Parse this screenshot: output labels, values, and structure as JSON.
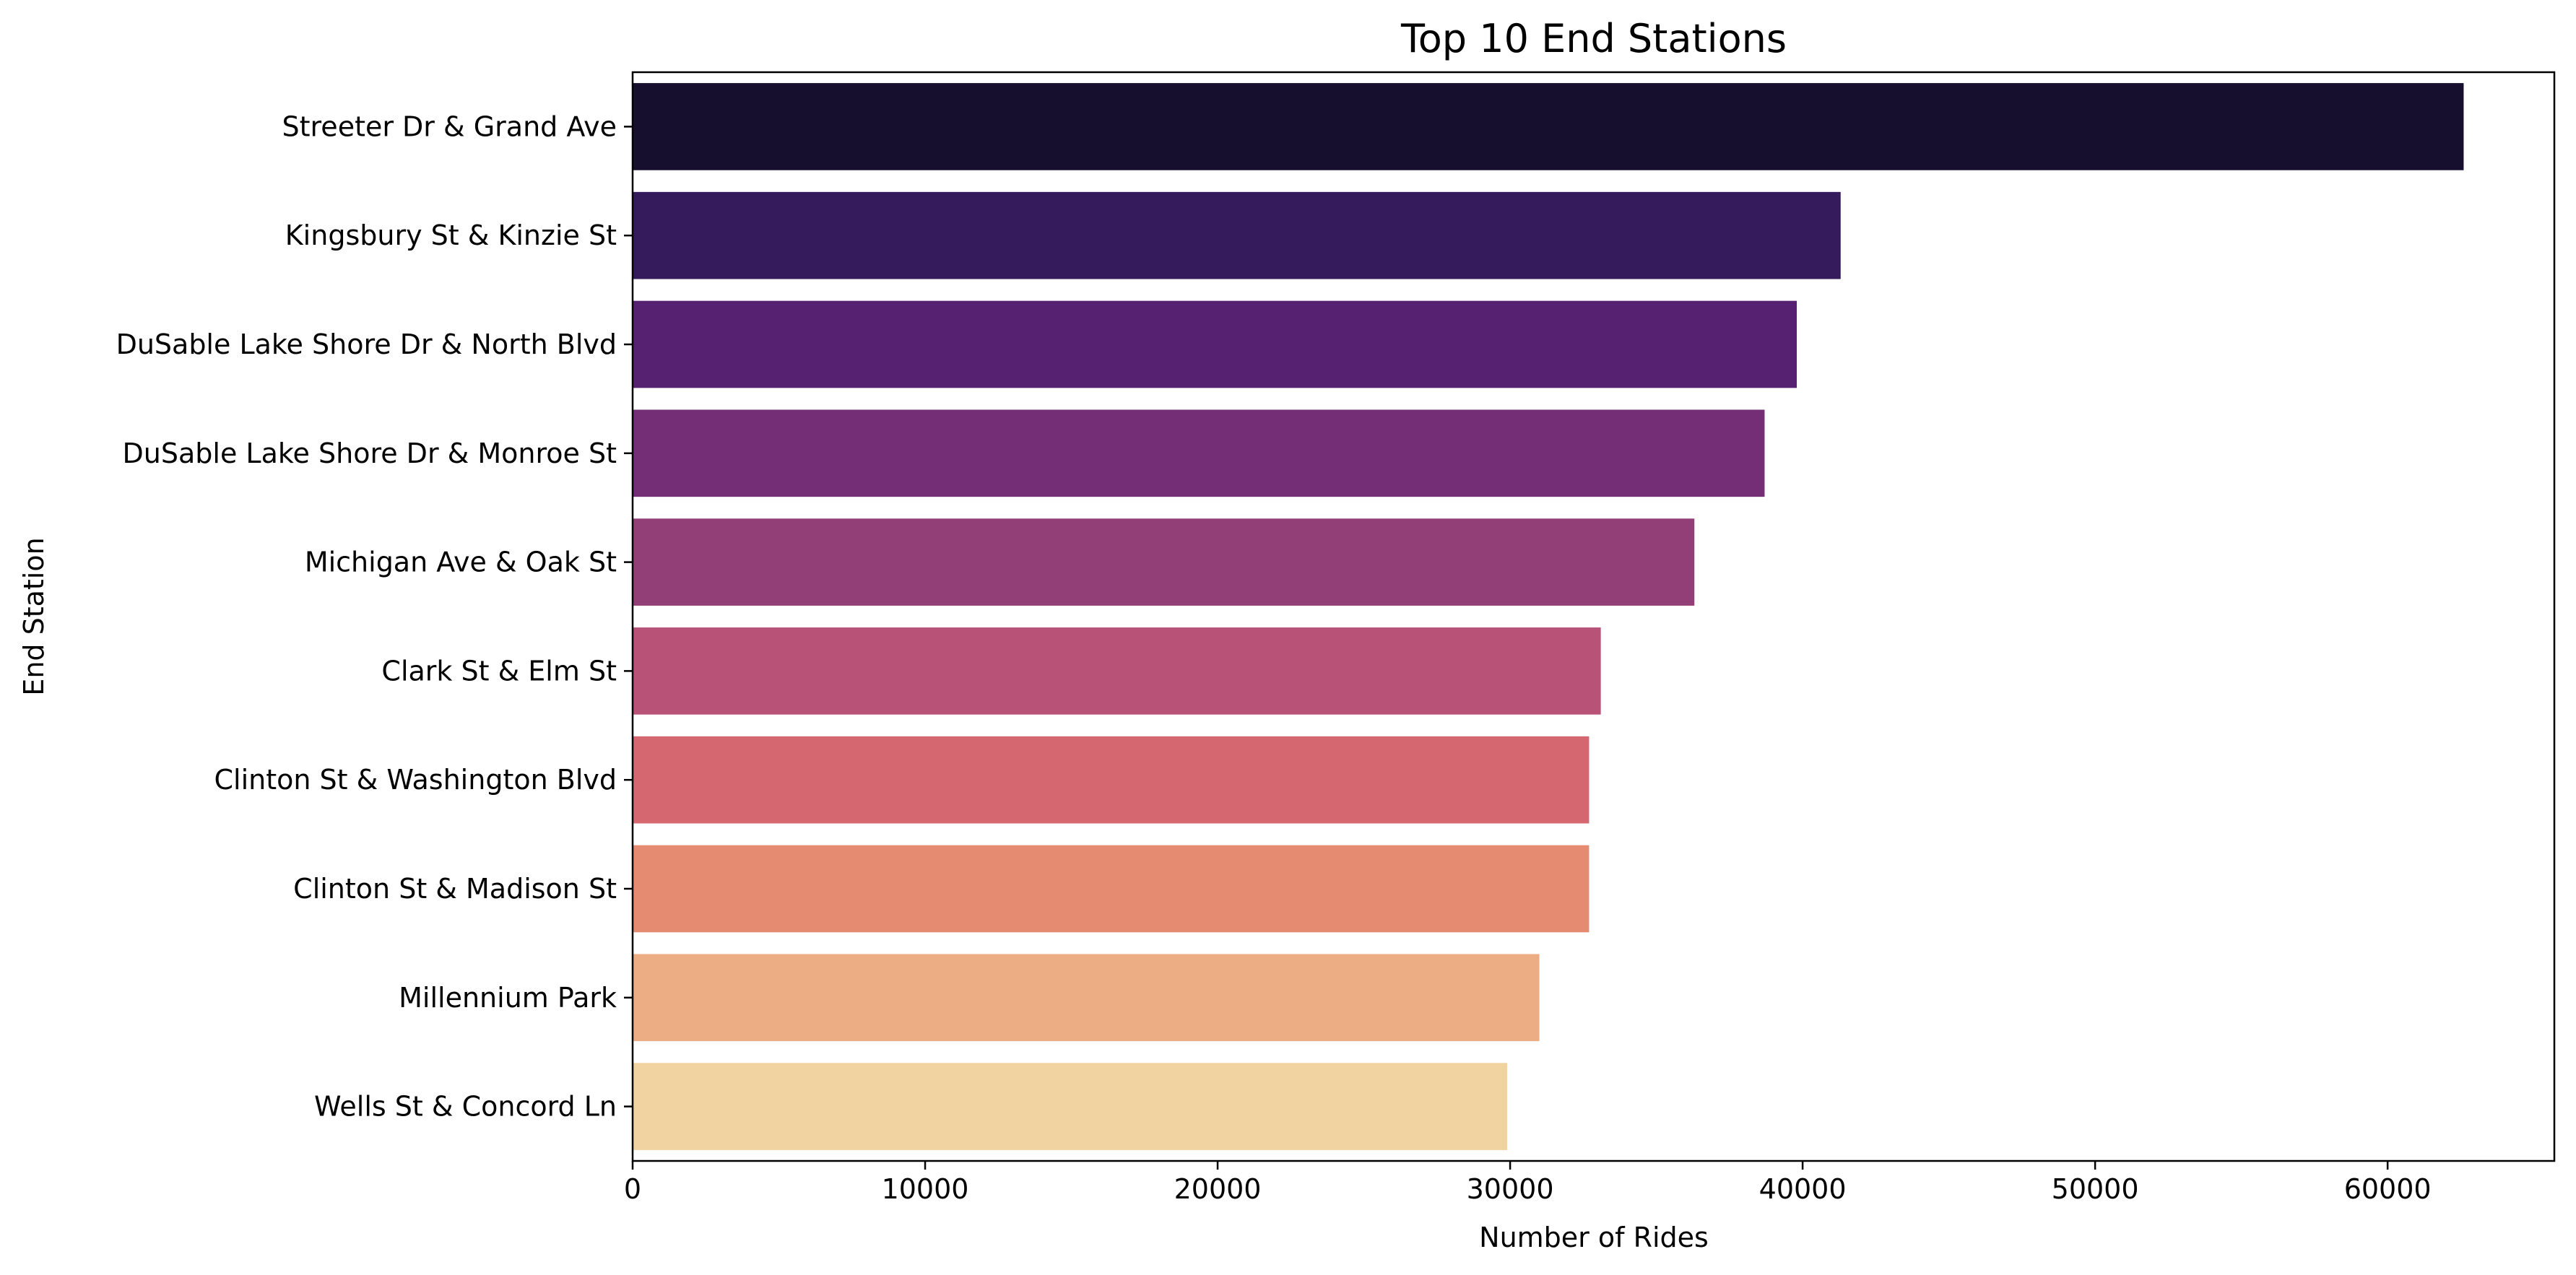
{
  "chart_data": {
    "type": "bar",
    "orientation": "horizontal",
    "title": "Top 10 End Stations",
    "xlabel": "Number of Rides",
    "ylabel": "End Station",
    "categories": [
      "Streeter Dr & Grand Ave",
      "Kingsbury St & Kinzie St",
      "DuSable Lake Shore Dr & North Blvd",
      "DuSable Lake Shore Dr & Monroe St",
      "Michigan Ave & Oak St",
      "Clark St & Elm St",
      "Clinton St & Washington Blvd",
      "Clinton St & Madison St",
      "Millennium Park",
      "Wells St & Concord Ln"
    ],
    "values": [
      62600,
      41300,
      39800,
      38700,
      36300,
      33100,
      32700,
      32700,
      31000,
      29900
    ],
    "colors": [
      "#160f2e",
      "#361b5c",
      "#562170",
      "#742e76",
      "#933f77",
      "#b85277",
      "#d56770",
      "#e58b72",
      "#ecad85",
      "#f1d2a1"
    ],
    "xlim": [
      0,
      65700
    ],
    "xticks": [
      0,
      10000,
      20000,
      30000,
      40000,
      50000,
      60000
    ],
    "xtick_labels": [
      "0",
      "10000",
      "20000",
      "30000",
      "40000",
      "50000",
      "60000"
    ],
    "grid": false,
    "legend": false
  }
}
